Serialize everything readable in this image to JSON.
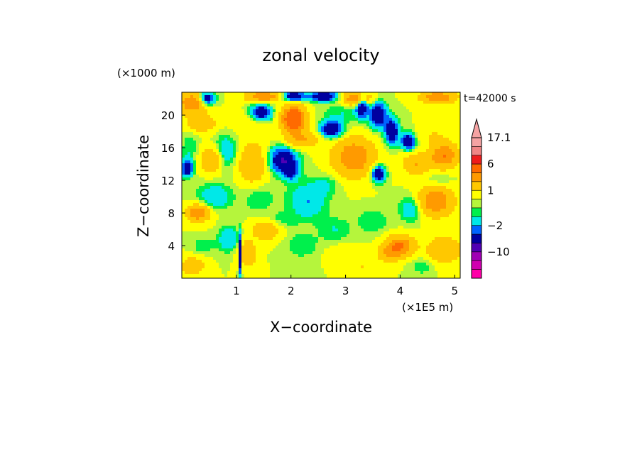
{
  "chart_data": {
    "type": "heatmap",
    "title": "zonal velocity",
    "xlabel": "X−coordinate",
    "ylabel": "Z−coordinate",
    "x_unit": "(×1E5 m)",
    "y_unit": "(×1000 m)",
    "timestamp": "t=42000 s",
    "xlim": [
      0,
      5.1
    ],
    "ylim": [
      0,
      22.8
    ],
    "x_ticks": [
      {
        "value": 1,
        "label": "1"
      },
      {
        "value": 2,
        "label": "2"
      },
      {
        "value": 3,
        "label": "3"
      },
      {
        "value": 4,
        "label": "4"
      },
      {
        "value": 5,
        "label": "5"
      }
    ],
    "y_ticks": [
      {
        "value": 4,
        "label": "4"
      },
      {
        "value": 8,
        "label": "8"
      },
      {
        "value": 12,
        "label": "12"
      },
      {
        "value": 16,
        "label": "16"
      },
      {
        "value": 20,
        "label": "20"
      }
    ],
    "colorbar": {
      "levels": [
        {
          "value": 17.1,
          "color": "#f5a3a3"
        },
        {
          "value": 14,
          "color": "#f08585"
        },
        {
          "value": 10,
          "color": "#ee1c1c"
        },
        {
          "value": 6,
          "color": "#ff6a00"
        },
        {
          "value": 4,
          "color": "#ff9a00"
        },
        {
          "value": 2,
          "color": "#ffc800"
        },
        {
          "value": 1,
          "color": "#ffff00"
        },
        {
          "value": 0.5,
          "color": "#b5f53c"
        },
        {
          "value": 0,
          "color": "#00f04c"
        },
        {
          "value": -1,
          "color": "#00e8e8"
        },
        {
          "value": -2,
          "color": "#0064ff"
        },
        {
          "value": -4,
          "color": "#0000a0"
        },
        {
          "value": -7,
          "color": "#5000b4"
        },
        {
          "value": -10,
          "color": "#a000b4"
        },
        {
          "value": -14,
          "color": "#d000b0"
        },
        {
          "value": -18,
          "color": "#ff00a8"
        }
      ],
      "labels": [
        {
          "value": 17.1,
          "label": "17.1"
        },
        {
          "value": 6,
          "label": "6"
        },
        {
          "value": 1,
          "label": "1"
        },
        {
          "value": -2,
          "label": "−2"
        },
        {
          "value": -10,
          "label": "−10"
        }
      ]
    },
    "field": {
      "background_value": 1,
      "blobs": [
        {
          "x": 0.2,
          "z": 21.5,
          "sx": 0.25,
          "sz": 1.2,
          "v": 6
        },
        {
          "x": 0.45,
          "z": 22.0,
          "sx": 0.15,
          "sz": 0.8,
          "v": -4
        },
        {
          "x": 1.5,
          "z": 22.3,
          "sx": 0.3,
          "sz": 0.6,
          "v": 6
        },
        {
          "x": 2.05,
          "z": 22.3,
          "sx": 0.2,
          "sz": 0.6,
          "v": -4
        },
        {
          "x": 2.6,
          "z": 22.3,
          "sx": 0.25,
          "sz": 0.6,
          "v": -4
        },
        {
          "x": 3.2,
          "z": 22.0,
          "sx": 0.25,
          "sz": 0.8,
          "v": 6
        },
        {
          "x": 4.7,
          "z": 22.2,
          "sx": 0.3,
          "sz": 0.7,
          "v": 6
        },
        {
          "x": 1.45,
          "z": 20.3,
          "sx": 0.18,
          "sz": 0.9,
          "v": -4
        },
        {
          "x": 2.05,
          "z": 19.5,
          "sx": 0.2,
          "sz": 1.5,
          "v": 10
        },
        {
          "x": 1.2,
          "z": 19.0,
          "sx": 0.3,
          "sz": 1.2,
          "v": 2
        },
        {
          "x": 0.35,
          "z": 19.0,
          "sx": 0.25,
          "sz": 1.0,
          "v": 4
        },
        {
          "x": 0.8,
          "z": 15.5,
          "sx": 0.2,
          "sz": 2.0,
          "v": -1
        },
        {
          "x": 0.15,
          "z": 16.0,
          "sx": 0.15,
          "sz": 2.0,
          "v": 0
        },
        {
          "x": 0.55,
          "z": 14.5,
          "sx": 0.2,
          "sz": 1.5,
          "v": 4
        },
        {
          "x": 1.3,
          "z": 14.0,
          "sx": 0.25,
          "sz": 2.5,
          "v": 4
        },
        {
          "x": 0.1,
          "z": 13.5,
          "sx": 0.1,
          "sz": 1.0,
          "v": -4
        },
        {
          "x": 1.85,
          "z": 14.5,
          "sx": 0.25,
          "sz": 1.5,
          "v": -4
        },
        {
          "x": 2.0,
          "z": 13.0,
          "sx": 0.15,
          "sz": 1.0,
          "v": -2
        },
        {
          "x": 2.2,
          "z": 17.0,
          "sx": 0.3,
          "sz": 1.0,
          "v": 4
        },
        {
          "x": 2.75,
          "z": 18.3,
          "sx": 0.2,
          "sz": 1.0,
          "v": -4
        },
        {
          "x": 3.0,
          "z": 20.3,
          "sx": 0.4,
          "sz": 1.2,
          "v": 0
        },
        {
          "x": 3.15,
          "z": 14.8,
          "sx": 0.35,
          "sz": 2.2,
          "v": 6
        },
        {
          "x": 3.3,
          "z": 21.2,
          "sx": 0.1,
          "sz": 1.4,
          "v": -4
        },
        {
          "x": 3.6,
          "z": 20.0,
          "sx": 0.15,
          "sz": 1.5,
          "v": -4
        },
        {
          "x": 3.85,
          "z": 18.0,
          "sx": 0.12,
          "sz": 1.5,
          "v": -4
        },
        {
          "x": 4.15,
          "z": 16.8,
          "sx": 0.12,
          "sz": 1.0,
          "v": -4
        },
        {
          "x": 3.6,
          "z": 12.8,
          "sx": 0.12,
          "sz": 1.0,
          "v": -4
        },
        {
          "x": 4.6,
          "z": 17.5,
          "sx": 0.3,
          "sz": 1.0,
          "v": 2
        },
        {
          "x": 4.8,
          "z": 15.0,
          "sx": 0.25,
          "sz": 1.5,
          "v": 6
        },
        {
          "x": 4.3,
          "z": 14.0,
          "sx": 0.25,
          "sz": 1.2,
          "v": 4
        },
        {
          "x": 4.7,
          "z": 12.0,
          "sx": 0.25,
          "sz": 1.2,
          "v": 0
        },
        {
          "x": 4.65,
          "z": 9.5,
          "sx": 0.3,
          "sz": 1.8,
          "v": 6
        },
        {
          "x": 4.2,
          "z": 8.5,
          "sx": 0.2,
          "sz": 1.5,
          "v": -1
        },
        {
          "x": 2.3,
          "z": 9.5,
          "sx": 0.35,
          "sz": 2.2,
          "v": -1
        },
        {
          "x": 2.65,
          "z": 11.5,
          "sx": 0.25,
          "sz": 1.2,
          "v": 0
        },
        {
          "x": 1.4,
          "z": 10.0,
          "sx": 0.3,
          "sz": 2.0,
          "v": 0
        },
        {
          "x": 0.6,
          "z": 10.0,
          "sx": 0.3,
          "sz": 1.5,
          "v": -1
        },
        {
          "x": 0.3,
          "z": 8.0,
          "sx": 0.2,
          "sz": 1.0,
          "v": 6
        },
        {
          "x": 1.75,
          "z": 7.0,
          "sx": 0.3,
          "sz": 1.0,
          "v": 0
        },
        {
          "x": 1.55,
          "z": 6.0,
          "sx": 0.25,
          "sz": 1.2,
          "v": 4
        },
        {
          "x": 0.85,
          "z": 4.8,
          "sx": 0.18,
          "sz": 1.5,
          "v": -1
        },
        {
          "x": 0.4,
          "z": 4.0,
          "sx": 0.2,
          "sz": 1.0,
          "v": 0
        },
        {
          "x": 1.07,
          "z": 2.8,
          "sx": 0.03,
          "sz": 2.5,
          "v": -4
        },
        {
          "x": 1.2,
          "z": 3.0,
          "sx": 0.15,
          "sz": 1.5,
          "v": 4
        },
        {
          "x": 0.2,
          "z": 1.5,
          "sx": 0.2,
          "sz": 1.0,
          "v": 4
        },
        {
          "x": 2.2,
          "z": 4.0,
          "sx": 0.3,
          "sz": 1.5,
          "v": 0
        },
        {
          "x": 2.8,
          "z": 6.0,
          "sx": 0.3,
          "sz": 1.5,
          "v": 0
        },
        {
          "x": 3.5,
          "z": 7.0,
          "sx": 0.3,
          "sz": 1.5,
          "v": 0
        },
        {
          "x": 4.0,
          "z": 4.0,
          "sx": 0.25,
          "sz": 1.2,
          "v": 6
        },
        {
          "x": 3.8,
          "z": 3.0,
          "sx": 0.2,
          "sz": 1.0,
          "v": 4
        },
        {
          "x": 4.8,
          "z": 3.5,
          "sx": 0.3,
          "sz": 1.5,
          "v": 4
        },
        {
          "x": 4.4,
          "z": 1.5,
          "sx": 0.2,
          "sz": 1.0,
          "v": 0
        },
        {
          "x": 3.3,
          "z": 1.5,
          "sx": 0.25,
          "sz": 0.8,
          "v": 2
        },
        {
          "x": 3.0,
          "z": 3.0,
          "sx": 0.3,
          "sz": 1.0,
          "v": 2
        }
      ]
    }
  }
}
